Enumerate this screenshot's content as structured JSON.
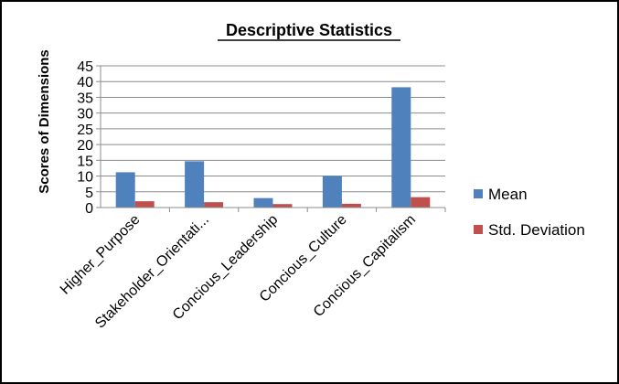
{
  "chart_data": {
    "type": "bar",
    "title": "Descriptive Statistics",
    "xlabel": "",
    "ylabel": "Scores of Dimensions",
    "categories": [
      "Higher_Purpose",
      "Stakeholder_Orientati...",
      "Concious_Leadership",
      "Concious_Culture",
      "Concious_Capitalism"
    ],
    "series": [
      {
        "name": "Mean",
        "color": "#4F81BD",
        "values": [
          11.2,
          14.7,
          3.0,
          10.0,
          38.2
        ]
      },
      {
        "name": "Std. Deviation",
        "color": "#C0504D",
        "values": [
          2.0,
          1.7,
          1.1,
          1.2,
          3.3
        ]
      }
    ],
    "ylim": [
      0,
      45
    ],
    "yticks": [
      0,
      5,
      10,
      15,
      20,
      25,
      30,
      35,
      40,
      45
    ],
    "grid": true,
    "legend": "right"
  }
}
